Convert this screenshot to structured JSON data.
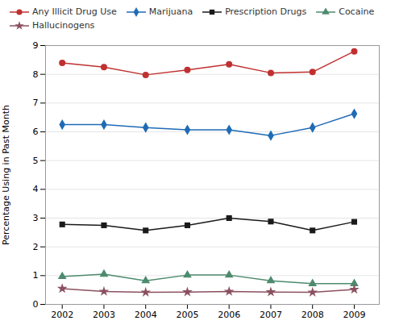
{
  "chart_data": {
    "type": "line",
    "x": [
      2002,
      2003,
      2004,
      2005,
      2006,
      2007,
      2008,
      2009
    ],
    "series": [
      {
        "name": "Any Illicit Drug Use",
        "color": "#c03030",
        "marker": "circle",
        "values": [
          8.4,
          8.25,
          7.98,
          8.15,
          8.35,
          8.05,
          8.08,
          8.8
        ]
      },
      {
        "name": "Marijuana",
        "color": "#1f6bb5",
        "marker": "diamond",
        "values": [
          6.25,
          6.25,
          6.15,
          6.07,
          6.07,
          5.87,
          6.15,
          6.63
        ]
      },
      {
        "name": "Prescription Drugs",
        "color": "#1a1a1a",
        "marker": "square",
        "values": [
          2.78,
          2.75,
          2.57,
          2.75,
          3.0,
          2.88,
          2.57,
          2.87
        ]
      },
      {
        "name": "Cocaine",
        "color": "#4e8b6e",
        "marker": "triangle",
        "values": [
          0.97,
          1.05,
          0.82,
          1.02,
          1.02,
          0.82,
          0.72,
          0.72
        ]
      },
      {
        "name": "Hallucinogens",
        "color": "#8b5060",
        "marker": "star",
        "values": [
          0.55,
          0.45,
          0.42,
          0.43,
          0.45,
          0.43,
          0.42,
          0.52
        ]
      }
    ],
    "ylabel": "Percentage Using in Past Month",
    "xlim": [
      2001.6,
      2009.6
    ],
    "xticks": [
      2002,
      2003,
      2004,
      2005,
      2006,
      2007,
      2008,
      2009
    ],
    "ylim": [
      0,
      9
    ],
    "yticks": [
      0,
      1,
      2,
      3,
      4,
      5,
      6,
      7,
      8,
      9
    ],
    "grid": true,
    "legend": "upper left"
  }
}
